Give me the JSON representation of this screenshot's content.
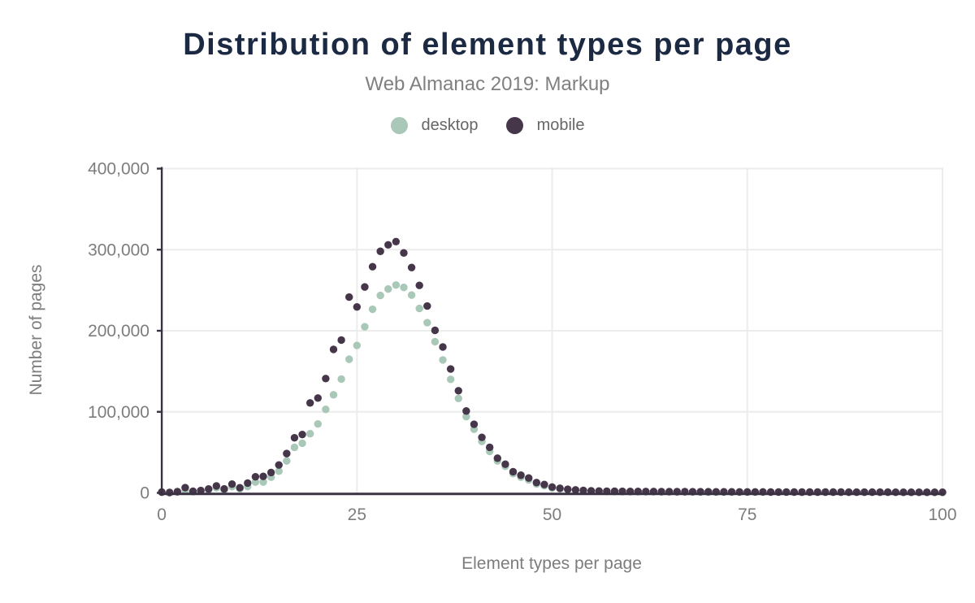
{
  "chart_data": {
    "type": "scatter",
    "title": "Distribution of element types per page",
    "subtitle": "Web Almanac 2019: Markup",
    "xlabel": "Element types per page",
    "ylabel": "Number of pages",
    "xlim": [
      0,
      100
    ],
    "ylim": [
      0,
      400000
    ],
    "grid": true,
    "legend_position": "top",
    "x_min": 0,
    "x_step": 1,
    "x_ticks": [
      {
        "value": 0,
        "label": "0"
      },
      {
        "value": 25,
        "label": "25"
      },
      {
        "value": 50,
        "label": "50"
      },
      {
        "value": 75,
        "label": "75"
      },
      {
        "value": 100,
        "label": "100"
      }
    ],
    "y_ticks": [
      {
        "value": 0,
        "label": "0"
      },
      {
        "value": 100000,
        "label": "100,000"
      },
      {
        "value": 200000,
        "label": "200,000"
      },
      {
        "value": 300000,
        "label": "300,000"
      },
      {
        "value": 400000,
        "label": "400,000"
      }
    ],
    "grid_color": "#ececec",
    "axis_color": "#3a3142",
    "text_color": "#7d7d7d",
    "title_color": "#1b2942",
    "series": [
      {
        "name": "desktop",
        "color": "#aac8b8",
        "values": [
          800,
          400,
          1200,
          2400,
          1500,
          2100,
          3400,
          6300,
          3800,
          7700,
          5100,
          7800,
          13300,
          13400,
          19400,
          26800,
          39400,
          56200,
          61200,
          73000,
          85000,
          103000,
          121000,
          140400,
          164900,
          181900,
          205000,
          226500,
          243500,
          251500,
          256500,
          253500,
          244000,
          227500,
          210000,
          186500,
          164000,
          140000,
          116500,
          94000,
          78500,
          63500,
          51200,
          39400,
          32800,
          23800,
          19400,
          16000,
          11000,
          8700,
          6100,
          4800,
          3700,
          3100,
          2600,
          2200,
          1900,
          1800,
          1700,
          1600,
          1500,
          1500,
          1400,
          1400,
          1300,
          1300,
          1200,
          1200,
          1200,
          1100,
          1100,
          1100,
          1000,
          1000,
          1000,
          1000,
          900,
          900,
          900,
          900,
          900,
          800,
          800,
          800,
          800,
          800,
          800,
          800,
          700,
          700,
          700,
          700,
          700,
          700,
          700,
          600,
          600,
          600,
          600,
          600,
          600
        ]
      },
      {
        "name": "mobile",
        "color": "#46364a",
        "values": [
          1000,
          500,
          1500,
          6500,
          2000,
          2900,
          4800,
          8600,
          5000,
          10800,
          6300,
          12100,
          19900,
          20400,
          25100,
          34400,
          48500,
          68000,
          72000,
          111000,
          117000,
          141000,
          177000,
          188500,
          241500,
          229400,
          254000,
          279000,
          298000,
          306000,
          310000,
          296000,
          278000,
          256000,
          230500,
          200500,
          180000,
          152800,
          126000,
          101000,
          84600,
          68500,
          56200,
          42800,
          35400,
          26100,
          21800,
          18400,
          12700,
          10300,
          7200,
          5700,
          4400,
          3700,
          3100,
          2600,
          2300,
          2100,
          2000,
          1900,
          1800,
          1800,
          1700,
          1700,
          1600,
          1600,
          1500,
          1500,
          1400,
          1400,
          1400,
          1300,
          1300,
          1300,
          1200,
          1200,
          1200,
          1200,
          1100,
          1100,
          1100,
          1100,
          1000,
          1000,
          1000,
          1000,
          1000,
          1000,
          900,
          900,
          900,
          900,
          900,
          900,
          800,
          800,
          800,
          800,
          800,
          800,
          800
        ]
      }
    ]
  }
}
